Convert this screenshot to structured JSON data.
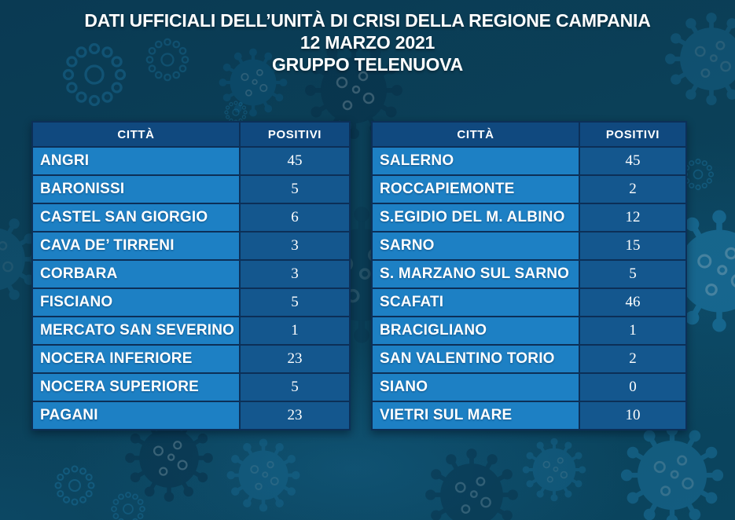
{
  "header": {
    "title": "DATI UFFICIALI DELL’UNITÀ DI CRISI DELLA REGIONE CAMPANIA",
    "date": "12 MARZO 2021",
    "source": "GRUPPO TELENUOVA"
  },
  "tables": [
    {
      "columns": [
        "CITTÀ",
        "POSITIVI"
      ],
      "rows": [
        {
          "city": "ANGRI",
          "positivi": "45"
        },
        {
          "city": "BARONISSI",
          "positivi": "5"
        },
        {
          "city": "CASTEL SAN GIORGIO",
          "positivi": "6"
        },
        {
          "city": "CAVA DE’ TIRRENI",
          "positivi": "3"
        },
        {
          "city": "CORBARA",
          "positivi": "3"
        },
        {
          "city": "FISCIANO",
          "positivi": "5"
        },
        {
          "city": "MERCATO SAN SEVERINO",
          "positivi": "1"
        },
        {
          "city": "NOCERA INFERIORE",
          "positivi": "23"
        },
        {
          "city": "NOCERA SUPERIORE",
          "positivi": "5"
        },
        {
          "city": "PAGANI",
          "positivi": "23"
        }
      ]
    },
    {
      "columns": [
        "CITTÀ",
        "POSITIVI"
      ],
      "rows": [
        {
          "city": "SALERNO",
          "positivi": "45"
        },
        {
          "city": "ROCCAPIEMONTE",
          "positivi": "2"
        },
        {
          "city": "S.EGIDIO DEL M. ALBINO",
          "positivi": "12"
        },
        {
          "city": "SARNO",
          "positivi": "15"
        },
        {
          "city": "S. MARZANO SUL SARNO",
          "positivi": "5"
        },
        {
          "city": "SCAFATI",
          "positivi": "46"
        },
        {
          "city": "BRACIGLIANO",
          "positivi": "1"
        },
        {
          "city": "SAN VALENTINO TORIO",
          "positivi": "2"
        },
        {
          "city": "SIANO",
          "positivi": "0"
        },
        {
          "city": "VIETRI SUL MARE",
          "positivi": "10"
        }
      ]
    }
  ],
  "colors": {
    "background": "#0b4058",
    "header_cell": "#10497f",
    "city_cell": "#1d80c4",
    "value_cell": "#14578e",
    "border": "#0c2f57",
    "text": "#ffffff",
    "virus_light": "#1e7aa8",
    "virus_dark": "#083048"
  }
}
